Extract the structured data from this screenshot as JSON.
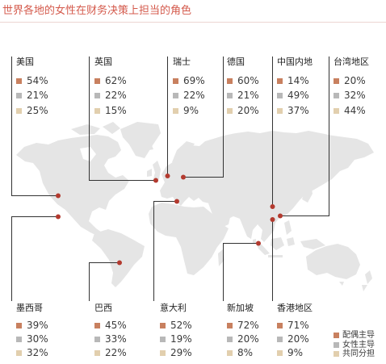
{
  "title": "世界各地的女性在财务决策上担当的角色",
  "colors": {
    "title": "#d45a4c",
    "spouse_led": "#c8805f",
    "woman_led": "#b8b8b8",
    "shared": "#e2cfae",
    "map": "#e5e5e5",
    "callout_line": "#333333",
    "callout_dot": "#b33a2f"
  },
  "regions": [
    {
      "name": "美国",
      "values": [
        "54%",
        "21%",
        "25%"
      ]
    },
    {
      "name": "英国",
      "values": [
        "62%",
        "22%",
        "15%"
      ]
    },
    {
      "name": "瑞士",
      "values": [
        "69%",
        "22%",
        "9%"
      ]
    },
    {
      "name": "德国",
      "values": [
        "60%",
        "21%",
        "20%"
      ]
    },
    {
      "name": "中国内地",
      "values": [
        "14%",
        "49%",
        "37%"
      ]
    },
    {
      "name": "台湾地区",
      "values": [
        "20%",
        "32%",
        "44%"
      ]
    },
    {
      "name": "墨西哥",
      "values": [
        "39%",
        "30%",
        "32%"
      ]
    },
    {
      "name": "巴西",
      "values": [
        "45%",
        "33%",
        "22%"
      ]
    },
    {
      "name": "意大利",
      "values": [
        "52%",
        "19%",
        "29%"
      ]
    },
    {
      "name": "新加坡",
      "values": [
        "72%",
        "20%",
        "8%"
      ]
    },
    {
      "name": "香港地区",
      "values": [
        "71%",
        "20%",
        "9%"
      ]
    }
  ],
  "legend": [
    {
      "label": "配偶主导",
      "color": "#c8805f"
    },
    {
      "label": "女性主导",
      "color": "#b8b8b8"
    },
    {
      "label": "共同分担",
      "color": "#e2cfae"
    }
  ]
}
